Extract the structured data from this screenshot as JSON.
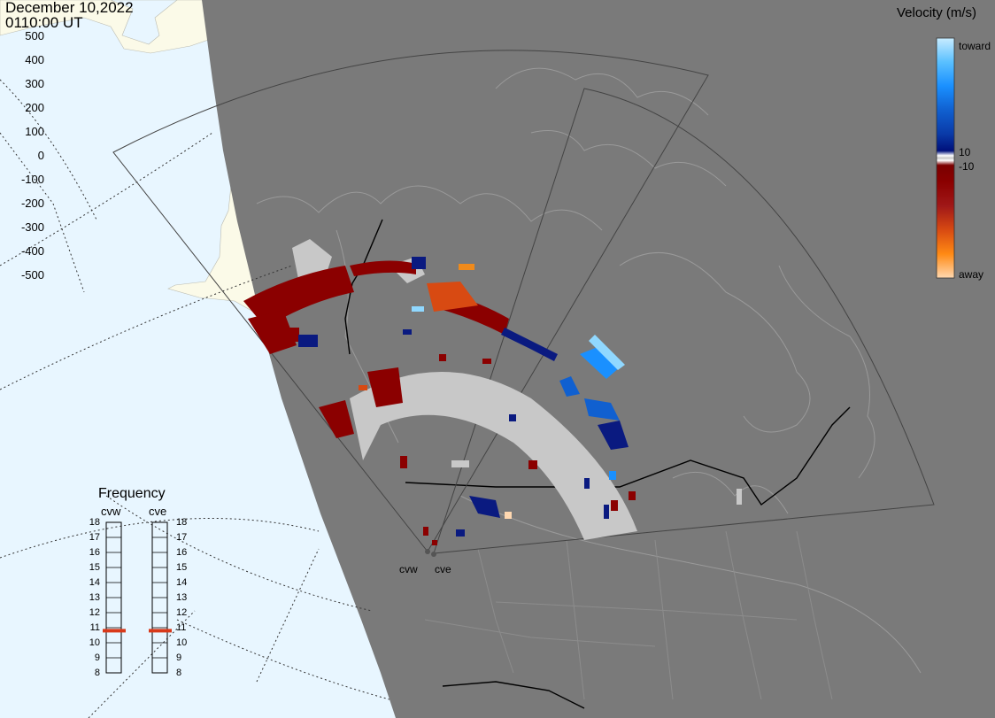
{
  "header": {
    "date": "December 10,2022",
    "time": "0110:00 UT"
  },
  "colorbar": {
    "title": "Velocity (m/s)",
    "ticks": [
      "500",
      "400",
      "300",
      "200",
      "100",
      "0",
      "-100",
      "-200",
      "-300",
      "-400",
      "-500"
    ],
    "toward_label": "toward",
    "away_label": "away",
    "plus10_label": "10",
    "minus10_label": "-10"
  },
  "frequency": {
    "title": "Frequency",
    "radars": [
      {
        "code": "cvw",
        "freq_mhz": 10.8
      },
      {
        "code": "cve",
        "freq_mhz": 10.8
      }
    ],
    "scale": [
      "18",
      "17",
      "16",
      "15",
      "14",
      "13",
      "12",
      "11",
      "10",
      "9",
      "8"
    ]
  },
  "sites": [
    "cvw",
    "cve"
  ],
  "colors": {
    "ocean": "#e8f6ff",
    "land_daylight": "#fbfae8",
    "night_shading": "#7a7a7a",
    "ground_scatter": "#c8c8c8",
    "freq_marker": "#d8391a"
  }
}
